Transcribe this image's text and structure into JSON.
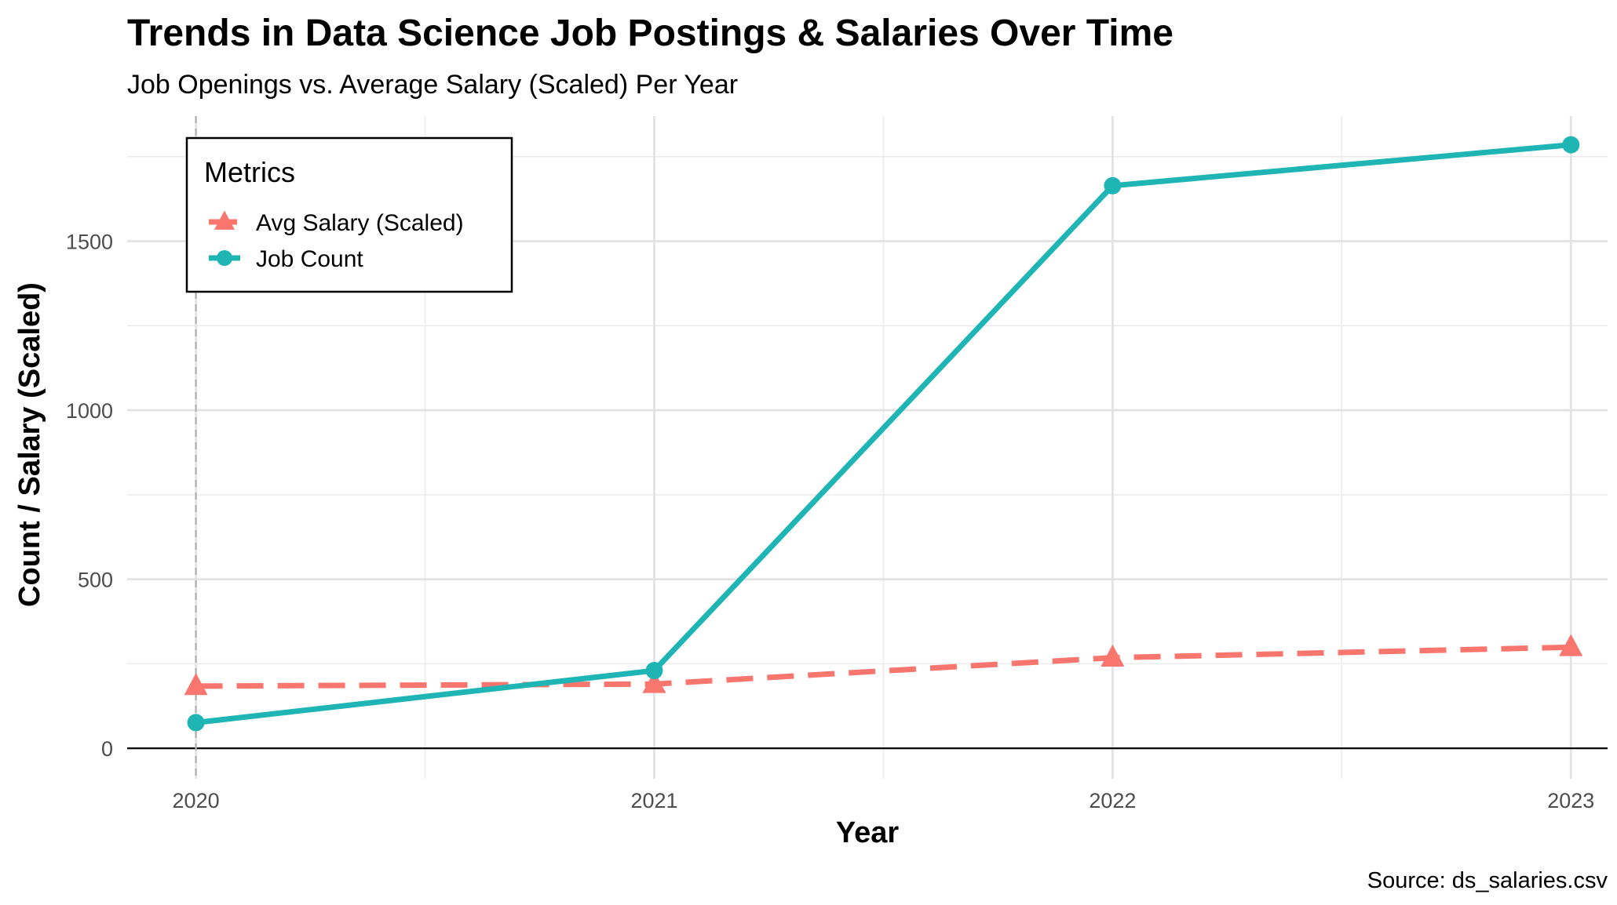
{
  "chart_data": {
    "type": "line",
    "title": "Trends in Data Science Job Postings & Salaries Over Time",
    "subtitle": "Job Openings vs. Average Salary (Scaled) Per Year",
    "xlabel": "Year",
    "ylabel": "Count / Salary (Scaled)",
    "caption": "Source: ds_salaries.csv",
    "x": [
      2020,
      2021,
      2022,
      2023
    ],
    "x_ticks": [
      "2020",
      "2021",
      "2022",
      "2023"
    ],
    "y_ticks": [
      "0",
      "500",
      "1000",
      "1500"
    ],
    "xlim": [
      2019.85,
      2023.08
    ],
    "ylim": [
      -90,
      1870
    ],
    "grid": true,
    "reference_line": {
      "x": 2020,
      "style": "dashed",
      "color": "#b3b3b3"
    },
    "legend": {
      "title": "Metrics",
      "placement": "top-left",
      "entries": [
        "Avg Salary (Scaled)",
        "Job Count"
      ]
    },
    "series": [
      {
        "name": "Avg Salary (Scaled)",
        "color": "#F8766D",
        "line_style": "dashed",
        "marker": "triangle",
        "values": [
          184,
          190,
          268,
          299
        ]
      },
      {
        "name": "Job Count",
        "color": "#1FB5B5",
        "line_style": "solid",
        "marker": "circle",
        "values": [
          76,
          230,
          1664,
          1785
        ]
      }
    ]
  }
}
